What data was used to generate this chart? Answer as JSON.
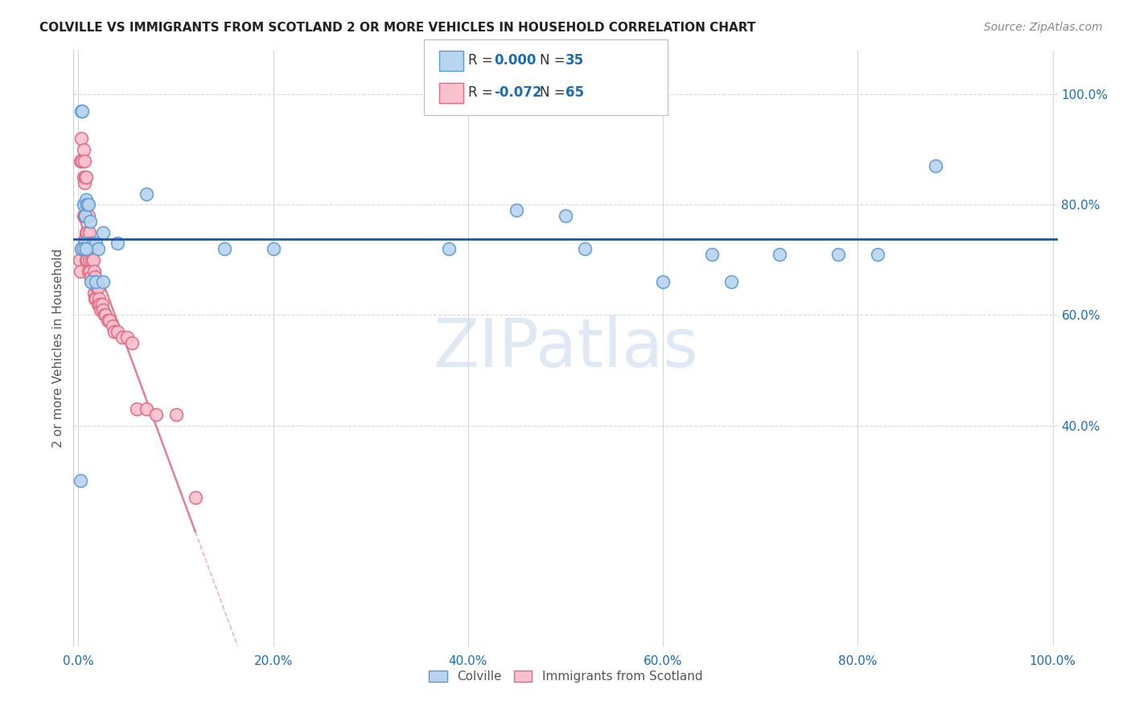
{
  "title": "COLVILLE VS IMMIGRANTS FROM SCOTLAND 2 OR MORE VEHICLES IN HOUSEHOLD CORRELATION CHART",
  "source": "Source: ZipAtlas.com",
  "ylabel": "2 or more Vehicles in Household",
  "colville_R": "0.000",
  "colville_N": "35",
  "scotland_R": "-0.072",
  "scotland_N": "65",
  "colville_fill": "#b8d4ee",
  "colville_edge": "#5b9bd5",
  "scotland_fill": "#f9c0ce",
  "scotland_edge": "#e06880",
  "trend_blue": "#2155a0",
  "trend_pink": "#e06880",
  "legend_R_color": "#1b6cb5",
  "tick_color": "#1b6cb5",
  "grid_color": "#d8d8d8",
  "watermark_color": "#c5d8ee",
  "colville_x": [
    0.003,
    0.004,
    0.005,
    0.006,
    0.007,
    0.008,
    0.009,
    0.01,
    0.012,
    0.015,
    0.018,
    0.02,
    0.025,
    0.04,
    0.07,
    0.15,
    0.2,
    0.38,
    0.45,
    0.5,
    0.52,
    0.6,
    0.65,
    0.67,
    0.72,
    0.78,
    0.82,
    0.88,
    0.002,
    0.003,
    0.005,
    0.008,
    0.013,
    0.018,
    0.025
  ],
  "colville_y": [
    0.97,
    0.97,
    0.8,
    0.73,
    0.78,
    0.81,
    0.8,
    0.8,
    0.77,
    0.73,
    0.73,
    0.72,
    0.75,
    0.73,
    0.82,
    0.72,
    0.72,
    0.72,
    0.79,
    0.78,
    0.72,
    0.66,
    0.71,
    0.66,
    0.71,
    0.71,
    0.71,
    0.87,
    0.3,
    0.72,
    0.72,
    0.72,
    0.66,
    0.66,
    0.66
  ],
  "scotland_x": [
    0.001,
    0.002,
    0.002,
    0.003,
    0.003,
    0.004,
    0.004,
    0.005,
    0.005,
    0.005,
    0.006,
    0.006,
    0.006,
    0.007,
    0.007,
    0.007,
    0.008,
    0.008,
    0.008,
    0.008,
    0.009,
    0.009,
    0.009,
    0.01,
    0.01,
    0.01,
    0.011,
    0.011,
    0.012,
    0.012,
    0.013,
    0.013,
    0.014,
    0.014,
    0.015,
    0.015,
    0.016,
    0.016,
    0.017,
    0.017,
    0.018,
    0.018,
    0.019,
    0.02,
    0.02,
    0.021,
    0.022,
    0.023,
    0.024,
    0.025,
    0.027,
    0.028,
    0.03,
    0.032,
    0.035,
    0.037,
    0.04,
    0.045,
    0.05,
    0.055,
    0.06,
    0.07,
    0.08,
    0.1,
    0.12
  ],
  "scotland_y": [
    0.7,
    0.88,
    0.68,
    0.92,
    0.72,
    0.88,
    0.72,
    0.9,
    0.85,
    0.78,
    0.88,
    0.84,
    0.78,
    0.85,
    0.8,
    0.74,
    0.85,
    0.8,
    0.75,
    0.7,
    0.8,
    0.75,
    0.7,
    0.78,
    0.73,
    0.68,
    0.75,
    0.7,
    0.73,
    0.68,
    0.72,
    0.67,
    0.7,
    0.66,
    0.7,
    0.66,
    0.68,
    0.64,
    0.67,
    0.63,
    0.66,
    0.63,
    0.65,
    0.65,
    0.62,
    0.63,
    0.62,
    0.61,
    0.62,
    0.61,
    0.6,
    0.6,
    0.59,
    0.59,
    0.58,
    0.57,
    0.57,
    0.56,
    0.56,
    0.55,
    0.43,
    0.43,
    0.42,
    0.42,
    0.27
  ],
  "xlim": [
    0.0,
    1.0
  ],
  "ylim": [
    0.0,
    1.08
  ]
}
